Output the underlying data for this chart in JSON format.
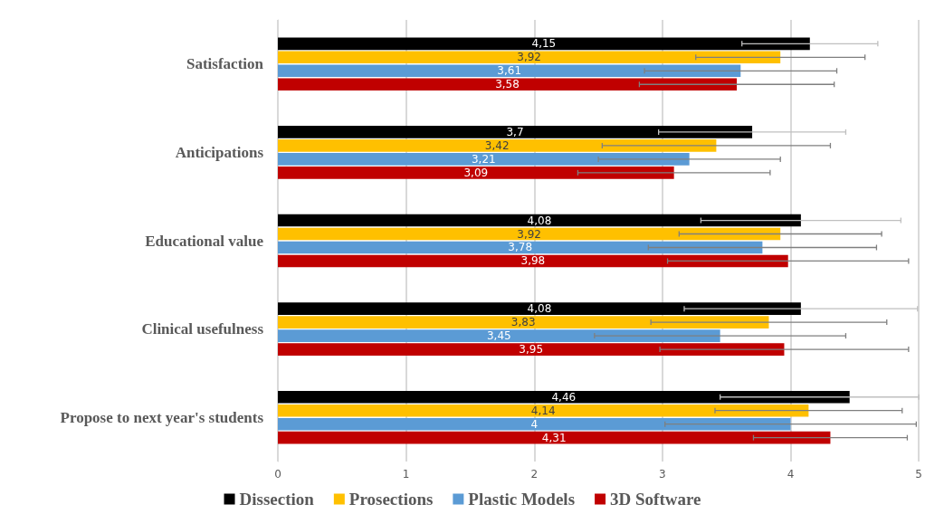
{
  "chart_data": {
    "type": "bar",
    "orientation": "horizontal",
    "categories": [
      "Satisfaction",
      "Anticipations",
      "Educational value",
      "Clinical usefulness",
      "Propose to next year's students"
    ],
    "xlim": [
      0,
      5
    ],
    "xticks": [
      0,
      1,
      2,
      3,
      4,
      5
    ],
    "grid": "x",
    "legend": "bottom",
    "series": [
      {
        "name": "Dissection",
        "color": "#000000",
        "values": [
          4.15,
          3.7,
          4.08,
          4.08,
          4.46
        ],
        "value_labels": [
          "4,15",
          "3,7",
          "4,08",
          "4,08",
          "4,46"
        ],
        "errors": [
          0.53,
          0.73,
          0.78,
          0.91,
          [
            3.45,
            5
          ]
        ]
      },
      {
        "name": "Prosections",
        "color": "#ffc000",
        "values": [
          3.92,
          3.42,
          3.92,
          3.83,
          4.14
        ],
        "value_labels": [
          "3,92",
          "3,42",
          "3,92",
          "3,83",
          "4,14"
        ],
        "errors": [
          0.66,
          0.89,
          0.79,
          0.92,
          0.73
        ]
      },
      {
        "name": "Plastic Models",
        "color": "#5b9bd5",
        "values": [
          3.61,
          3.21,
          3.78,
          3.45,
          4
        ],
        "value_labels": [
          "3,61",
          "3,21",
          "3,78",
          "3,45",
          "4"
        ],
        "errors": [
          0.75,
          0.71,
          0.89,
          0.98,
          0.98
        ]
      },
      {
        "name": "3D Software",
        "color": "#c00000",
        "values": [
          3.58,
          3.09,
          3.98,
          3.95,
          4.31
        ],
        "value_labels": [
          "3,58",
          "3,09",
          "3,98",
          "3,95",
          "4,31"
        ],
        "errors": [
          0.76,
          0.75,
          0.94,
          0.97,
          0.6
        ]
      }
    ]
  }
}
